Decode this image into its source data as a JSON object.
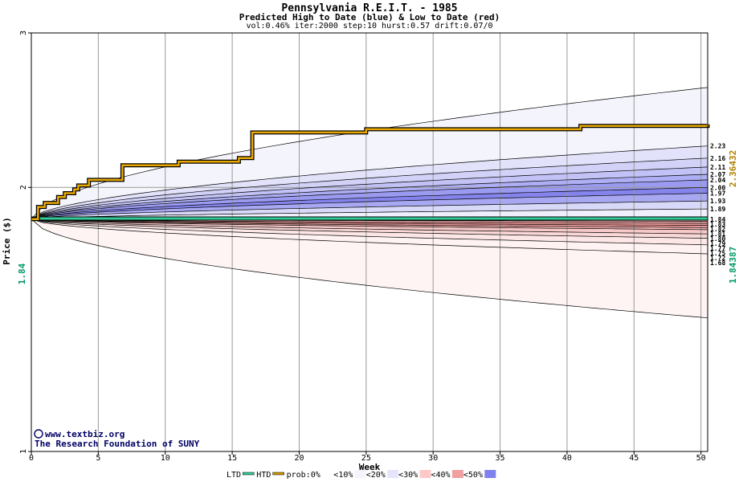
{
  "chart_data": {
    "type": "area",
    "title": "Pennsylvania R.E.I.T. - 1985",
    "subtitle": "Predicted High to Date (blue) &  Low to Date (red)",
    "params": "vol:0.46% iter:2000 step:10 hurst:0.57 drift:0.07/0",
    "xlabel": "Week",
    "ylabel": "Price ($)",
    "xlim": [
      0,
      50.5
    ],
    "ylim": [
      1,
      3
    ],
    "log_scale_y": true,
    "x_ticks": [
      0,
      5,
      10,
      15,
      20,
      25,
      30,
      35,
      40,
      45,
      50
    ],
    "y_ticks": [
      1,
      2,
      3
    ],
    "start_price": 1.84,
    "start_price_label": "1.84",
    "htd_final": 2.36432,
    "htd_final_label": "2.36432",
    "ltd_final": 1.84387,
    "ltd_final_label": "1.84387",
    "high_band_end_values": [
      2.23,
      2.16,
      2.11,
      2.07,
      2.04,
      2.0,
      1.97,
      1.93,
      1.89
    ],
    "high_band_end_labels": [
      "2.23",
      "2.16",
      "2.11",
      "2.07",
      "2.04",
      "2.00",
      "1.97",
      "1.93",
      "1.89"
    ],
    "low_band_end_values": [
      1.84,
      1.83,
      1.82,
      1.81,
      1.8,
      1.79,
      1.77,
      1.75,
      1.72,
      1.68
    ],
    "low_band_end_labels": [
      "1.84",
      "1.83",
      "1.82",
      "1.81",
      "1.80",
      "1.79",
      "1.77",
      "1.75",
      "1.72",
      "1.68"
    ],
    "high_envelope_end": 2.6,
    "low_envelope_end": 1.42,
    "htd_series": {
      "name": "HTD",
      "x": [
        0,
        0.5,
        1,
        2,
        2.5,
        3.2,
        3.5,
        4.3,
        6.8,
        11,
        15.5,
        16.5,
        25,
        41,
        50.5
      ],
      "y": [
        1.84,
        1.9,
        1.92,
        1.95,
        1.97,
        1.99,
        2.01,
        2.04,
        2.12,
        2.14,
        2.16,
        2.31,
        2.33,
        2.35,
        2.36
      ]
    },
    "ltd_series": {
      "name": "LTD",
      "x": [
        0,
        50.5
      ],
      "y": [
        1.843,
        1.843
      ]
    },
    "legend": {
      "placement": "bottom",
      "items": [
        {
          "label": "LTD",
          "color": "#33cc99",
          "kind": "line"
        },
        {
          "label": "HTD",
          "color": "#cc9900",
          "kind": "line"
        },
        {
          "label": "prob:0%",
          "color": "#ffffff",
          "kind": "swatch"
        },
        {
          "label": "<10%",
          "color": "#f4f4fc",
          "kind": "swatch"
        },
        {
          "label": "<20%",
          "color": "#e4e4fa",
          "kind": "swatch"
        },
        {
          "label": "<30%",
          "color": "#ffc8c8",
          "kind": "swatch"
        },
        {
          "label": "<40%",
          "color": "#f0a0a0",
          "kind": "swatch"
        },
        {
          "label": "<50%",
          "color": "#8080ee",
          "kind": "swatch"
        }
      ]
    },
    "watermark_line1": "www.textbiz.org",
    "watermark_line2": "The Research Foundation of SUNY"
  },
  "colors": {
    "grid": "#999999",
    "blue_dark": "#6464e6",
    "red_dark": "#f08080",
    "htd": "#e8a800",
    "ltd": "#33cc99",
    "htd_label": "#b08000",
    "ltd_label": "#009966",
    "watermark": "#000066"
  }
}
